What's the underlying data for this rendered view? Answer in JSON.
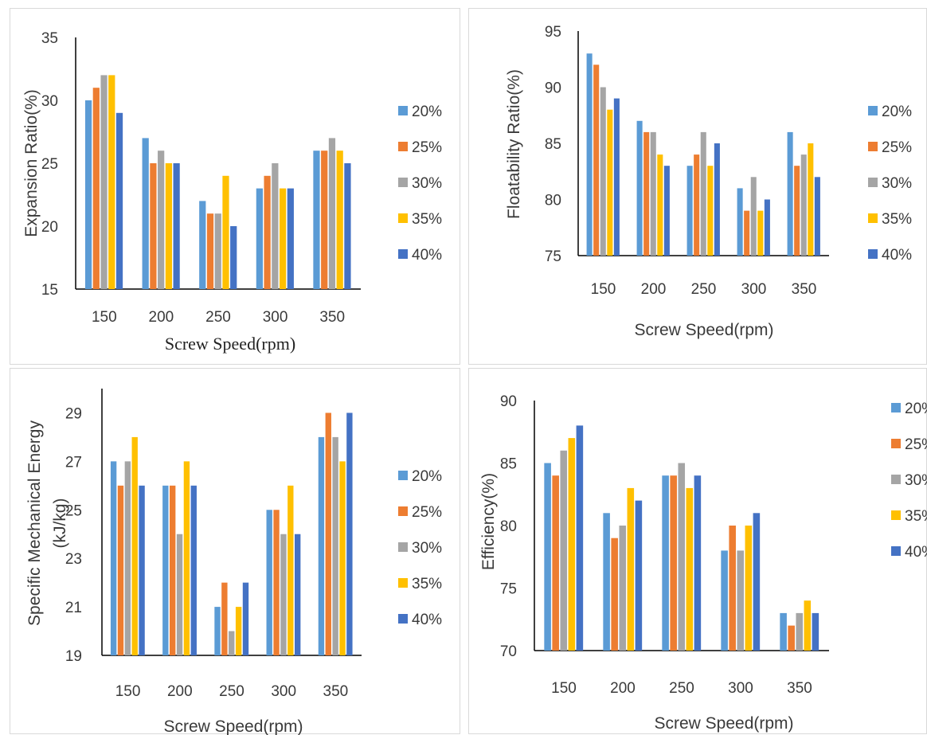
{
  "colors": {
    "s20": "#5b9bd5",
    "s25": "#ed7d31",
    "s30": "#a5a5a5",
    "s35": "#ffc000",
    "s40": "#4472c4",
    "axis": "#000000",
    "border": "#d9d9d9"
  },
  "chart_data": [
    {
      "type": "bar",
      "categories": [
        "150",
        "200",
        "250",
        "300",
        "350"
      ],
      "series": [
        {
          "name": "20%",
          "values": [
            30,
            27,
            22,
            23,
            26
          ]
        },
        {
          "name": "25%",
          "values": [
            31,
            25,
            21,
            24,
            26
          ]
        },
        {
          "name": "30%",
          "values": [
            32,
            26,
            21,
            25,
            27
          ]
        },
        {
          "name": "35%",
          "values": [
            32,
            25,
            24,
            23,
            26
          ]
        },
        {
          "name": "40%",
          "values": [
            29,
            25,
            20,
            23,
            25
          ]
        }
      ],
      "xlabel": "Screw Speed(rpm)",
      "ylabel": "Expansion Ratio(%)",
      "ylabel2": "",
      "ylim": [
        15,
        35
      ],
      "yticks": [
        "15",
        "20",
        "25",
        "30",
        "35"
      ],
      "legend_position": "right",
      "grid": false
    },
    {
      "type": "bar",
      "categories": [
        "150",
        "200",
        "250",
        "300",
        "350"
      ],
      "series": [
        {
          "name": "20%",
          "values": [
            93,
            87,
            83,
            81,
            86
          ]
        },
        {
          "name": "25%",
          "values": [
            92,
            86,
            84,
            79,
            83
          ]
        },
        {
          "name": "30%",
          "values": [
            90,
            86,
            86,
            82,
            84
          ]
        },
        {
          "name": "35%",
          "values": [
            88,
            84,
            83,
            79,
            85
          ]
        },
        {
          "name": "40%",
          "values": [
            89,
            83,
            85,
            80,
            82
          ]
        }
      ],
      "xlabel": "Screw Speed(rpm)",
      "ylabel": "Floatability Ratio(%)",
      "ylabel2": "",
      "ylim": [
        75,
        95
      ],
      "yticks": [
        "75",
        "80",
        "85",
        "90",
        "95"
      ],
      "legend_position": "right",
      "grid": false
    },
    {
      "type": "bar",
      "categories": [
        "150",
        "200",
        "250",
        "300",
        "350"
      ],
      "series": [
        {
          "name": "20%",
          "values": [
            27,
            26,
            21,
            25,
            28
          ]
        },
        {
          "name": "25%",
          "values": [
            26,
            26,
            22,
            25,
            29
          ]
        },
        {
          "name": "30%",
          "values": [
            27,
            24,
            20,
            24,
            28
          ]
        },
        {
          "name": "35%",
          "values": [
            28,
            27,
            21,
            26,
            27
          ]
        },
        {
          "name": "40%",
          "values": [
            26,
            26,
            22,
            24,
            29
          ]
        }
      ],
      "xlabel": "Screw Speed(rpm)",
      "ylabel": "Specific Mechanical Energy",
      "ylabel2": "(kJ/kg)",
      "ylim": [
        19,
        30
      ],
      "yticks": [
        "19",
        "21",
        "23",
        "25",
        "27",
        "29"
      ],
      "legend_position": "right",
      "grid": false
    },
    {
      "type": "bar",
      "categories": [
        "150",
        "200",
        "250",
        "300",
        "350"
      ],
      "series": [
        {
          "name": "20%",
          "values": [
            85,
            81,
            84,
            78,
            73
          ]
        },
        {
          "name": "25%",
          "values": [
            84,
            79,
            84,
            80,
            72
          ]
        },
        {
          "name": "30%",
          "values": [
            86,
            80,
            85,
            78,
            73
          ]
        },
        {
          "name": "35%",
          "values": [
            87,
            83,
            83,
            80,
            74
          ]
        },
        {
          "name": "40%",
          "values": [
            88,
            82,
            84,
            81,
            73
          ]
        }
      ],
      "xlabel": "Screw Speed(rpm)",
      "ylabel": "Efficiency(%)",
      "ylabel2": "",
      "ylim": [
        70,
        90
      ],
      "yticks": [
        "70",
        "75",
        "80",
        "85",
        "90"
      ],
      "legend_position": "top-right",
      "grid": false
    }
  ]
}
